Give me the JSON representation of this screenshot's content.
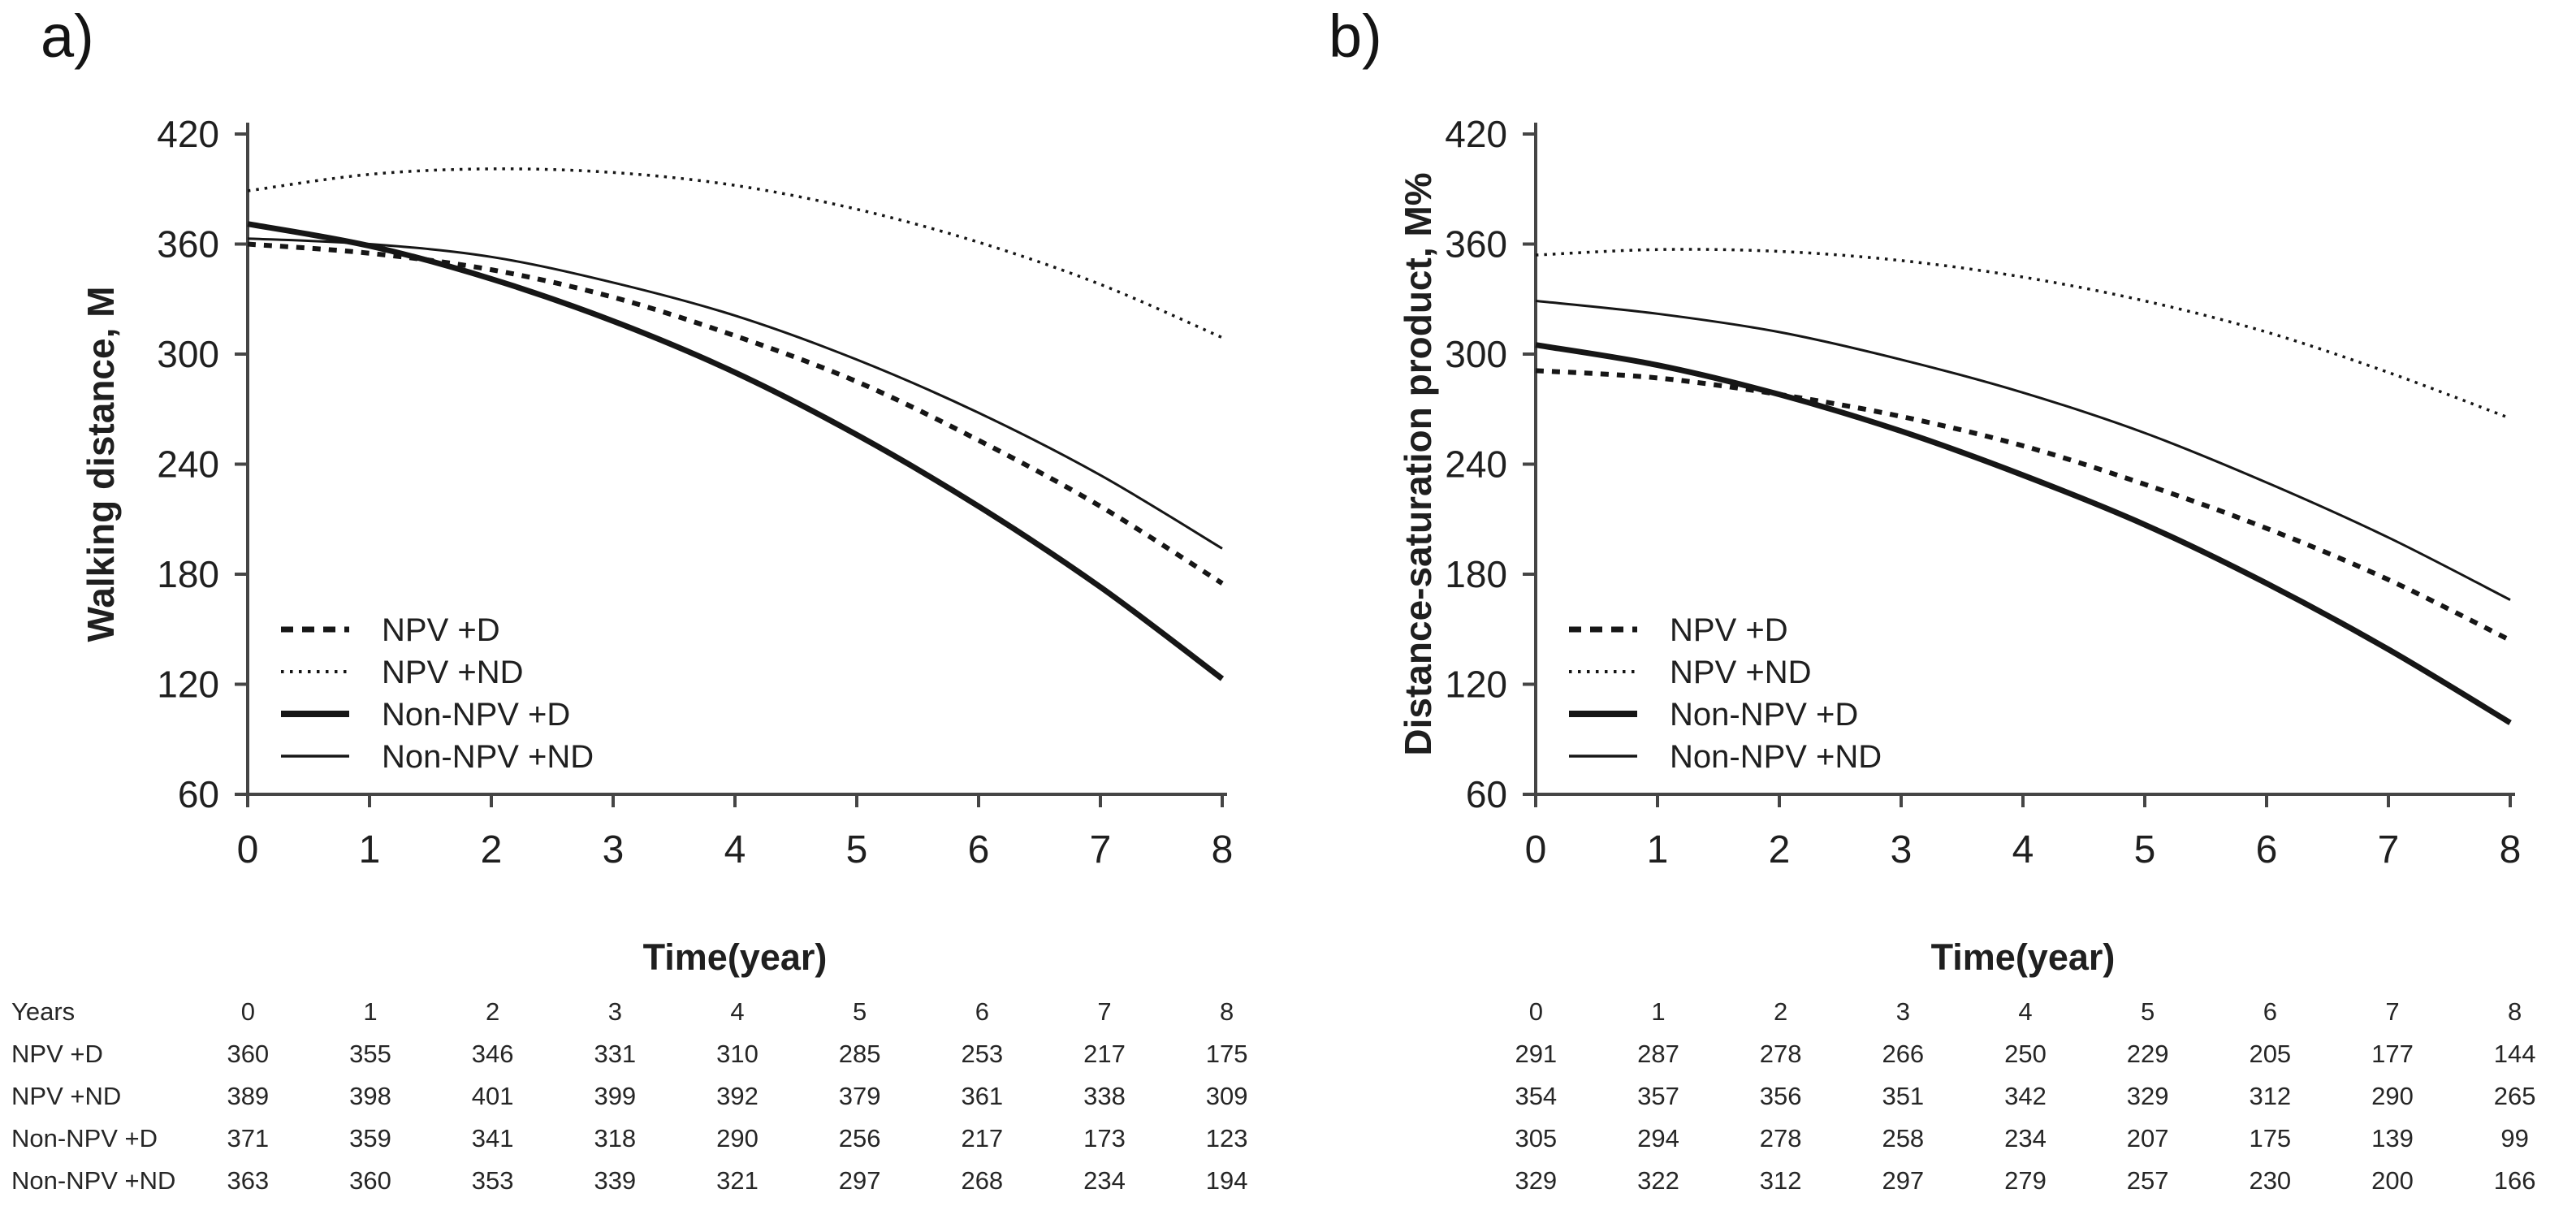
{
  "figure": {
    "background": "#ffffff",
    "text_color": "#1f1f1f",
    "axis_color": "#454545",
    "line_color": "#161616"
  },
  "panels": [
    {
      "panel_label": "a)",
      "table": {
        "row_header_label": "Years",
        "show_row_labels": true
      }
    },
    {
      "panel_label": "b)",
      "table": {
        "row_header_label": "",
        "show_row_labels": false
      }
    }
  ],
  "chart_data": [
    {
      "type": "line",
      "title": "a)",
      "x": [
        0,
        1,
        2,
        3,
        4,
        5,
        6,
        7,
        8
      ],
      "xlabel": "Time(year)",
      "ylabel": "Walking distance, M",
      "ylim": [
        60,
        420
      ],
      "yticks": [
        420,
        360,
        300,
        240,
        180,
        120,
        60
      ],
      "xticks": [
        0,
        1,
        2,
        3,
        4,
        5,
        6,
        7,
        8
      ],
      "grid": false,
      "legend_position": "inside-lower-left",
      "legend": [
        "NPV +D",
        "NPV +ND",
        "Non-NPV +D",
        "Non-NPV +ND"
      ],
      "series": [
        {
          "name": "NPV +D",
          "line_style": "dashed",
          "values": [
            360,
            355,
            346,
            331,
            310,
            285,
            253,
            217,
            175
          ]
        },
        {
          "name": "NPV +ND",
          "line_style": "dotted",
          "values": [
            389,
            398,
            401,
            399,
            392,
            379,
            361,
            338,
            309
          ]
        },
        {
          "name": "Non-NPV +D",
          "line_style": "solid-thick",
          "values": [
            371,
            359,
            341,
            318,
            290,
            256,
            217,
            173,
            123
          ]
        },
        {
          "name": "Non-NPV +ND",
          "line_style": "solid-thin",
          "values": [
            363,
            360,
            353,
            339,
            321,
            297,
            268,
            234,
            194
          ]
        }
      ]
    },
    {
      "type": "line",
      "title": "b)",
      "x": [
        0,
        1,
        2,
        3,
        4,
        5,
        6,
        7,
        8
      ],
      "xlabel": "Time(year)",
      "ylabel": "Distance-saturation product, M%",
      "ylim": [
        60,
        420
      ],
      "yticks": [
        420,
        360,
        300,
        240,
        180,
        120,
        60
      ],
      "xticks": [
        0,
        1,
        2,
        3,
        4,
        5,
        6,
        7,
        8
      ],
      "grid": false,
      "legend_position": "inside-lower-left",
      "legend": [
        "NPV +D",
        "NPV +ND",
        "Non-NPV +D",
        "Non-NPV +ND"
      ],
      "series": [
        {
          "name": "NPV +D",
          "line_style": "dashed",
          "values": [
            291,
            287,
            278,
            266,
            250,
            229,
            205,
            177,
            144
          ]
        },
        {
          "name": "NPV +ND",
          "line_style": "dotted",
          "values": [
            354,
            357,
            356,
            351,
            342,
            329,
            312,
            290,
            265
          ]
        },
        {
          "name": "Non-NPV +D",
          "line_style": "solid-thick",
          "values": [
            305,
            294,
            278,
            258,
            234,
            207,
            175,
            139,
            99
          ]
        },
        {
          "name": "Non-NPV +ND",
          "line_style": "solid-thin",
          "values": [
            329,
            322,
            312,
            297,
            279,
            257,
            230,
            200,
            166
          ]
        }
      ]
    }
  ]
}
